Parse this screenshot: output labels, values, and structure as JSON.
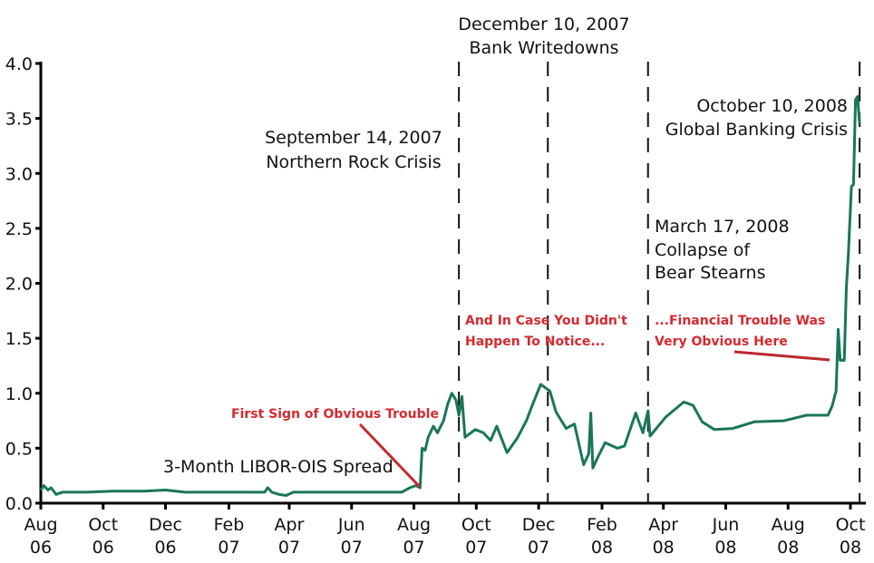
{
  "chart_data": {
    "type": "line",
    "title": "",
    "xlabel": "",
    "ylabel": "",
    "ylim": [
      0,
      4.0
    ],
    "xlim": [
      "2006-08-01",
      "2008-10-15"
    ],
    "grid": false,
    "y_ticks": [
      "0.0",
      "0.5",
      "1.0",
      "1.5",
      "2.0",
      "2.5",
      "3.0",
      "3.5",
      "4.0"
    ],
    "x_ticks": [
      {
        "date": "2006-08-01",
        "month": "Aug",
        "year": "06"
      },
      {
        "date": "2006-10-01",
        "month": "Oct",
        "year": "06"
      },
      {
        "date": "2006-12-01",
        "month": "Dec",
        "year": "06"
      },
      {
        "date": "2007-02-01",
        "month": "Feb",
        "year": "07"
      },
      {
        "date": "2007-04-01",
        "month": "Apr",
        "year": "07"
      },
      {
        "date": "2007-06-01",
        "month": "Jun",
        "year": "07"
      },
      {
        "date": "2007-08-01",
        "month": "Aug",
        "year": "07"
      },
      {
        "date": "2007-10-01",
        "month": "Oct",
        "year": "07"
      },
      {
        "date": "2007-12-01",
        "month": "Dec",
        "year": "07"
      },
      {
        "date": "2008-02-01",
        "month": "Feb",
        "year": "08"
      },
      {
        "date": "2008-04-01",
        "month": "Apr",
        "year": "08"
      },
      {
        "date": "2008-06-01",
        "month": "Jun",
        "year": "08"
      },
      {
        "date": "2008-08-01",
        "month": "Aug",
        "year": "08"
      },
      {
        "date": "2008-10-01",
        "month": "Oct",
        "year": "08"
      }
    ],
    "series": [
      {
        "name": "3-Month LIBOR-OIS Spread",
        "color": "#1a7658",
        "points": [
          [
            "2006-08-01",
            0.12
          ],
          [
            "2006-08-04",
            0.16
          ],
          [
            "2006-08-08",
            0.12
          ],
          [
            "2006-08-11",
            0.14
          ],
          [
            "2006-08-16",
            0.08
          ],
          [
            "2006-08-22",
            0.1
          ],
          [
            "2006-09-15",
            0.1
          ],
          [
            "2006-10-10",
            0.11
          ],
          [
            "2006-11-10",
            0.11
          ],
          [
            "2006-12-01",
            0.12
          ],
          [
            "2006-12-20",
            0.1
          ],
          [
            "2007-01-15",
            0.1
          ],
          [
            "2007-02-15",
            0.1
          ],
          [
            "2007-03-08",
            0.1
          ],
          [
            "2007-03-11",
            0.14
          ],
          [
            "2007-03-15",
            0.1
          ],
          [
            "2007-03-22",
            0.08
          ],
          [
            "2007-03-29",
            0.07
          ],
          [
            "2007-04-05",
            0.1
          ],
          [
            "2007-05-15",
            0.1
          ],
          [
            "2007-06-15",
            0.1
          ],
          [
            "2007-07-20",
            0.1
          ],
          [
            "2007-07-28",
            0.14
          ],
          [
            "2007-08-03",
            0.16
          ],
          [
            "2007-08-07",
            0.14
          ],
          [
            "2007-08-09",
            0.5
          ],
          [
            "2007-08-12",
            0.48
          ],
          [
            "2007-08-15",
            0.6
          ],
          [
            "2007-08-20",
            0.7
          ],
          [
            "2007-08-24",
            0.64
          ],
          [
            "2007-08-30",
            0.75
          ],
          [
            "2007-09-03",
            0.9
          ],
          [
            "2007-09-07",
            1.0
          ],
          [
            "2007-09-11",
            0.94
          ],
          [
            "2007-09-14",
            0.8
          ],
          [
            "2007-09-17",
            0.97
          ],
          [
            "2007-09-20",
            0.6
          ],
          [
            "2007-09-30",
            0.67
          ],
          [
            "2007-10-08",
            0.64
          ],
          [
            "2007-10-15",
            0.57
          ],
          [
            "2007-10-21",
            0.7
          ],
          [
            "2007-10-31",
            0.46
          ],
          [
            "2007-11-10",
            0.59
          ],
          [
            "2007-11-19",
            0.75
          ],
          [
            "2007-11-26",
            0.92
          ],
          [
            "2007-12-03",
            1.08
          ],
          [
            "2007-12-12",
            1.02
          ],
          [
            "2007-12-18",
            0.83
          ],
          [
            "2007-12-28",
            0.68
          ],
          [
            "2008-01-05",
            0.72
          ],
          [
            "2008-01-14",
            0.35
          ],
          [
            "2008-01-19",
            0.45
          ],
          [
            "2008-01-21",
            0.82
          ],
          [
            "2008-01-23",
            0.32
          ],
          [
            "2008-01-28",
            0.42
          ],
          [
            "2008-02-04",
            0.55
          ],
          [
            "2008-02-16",
            0.5
          ],
          [
            "2008-02-23",
            0.52
          ],
          [
            "2008-03-05",
            0.82
          ],
          [
            "2008-03-12",
            0.64
          ],
          [
            "2008-03-17",
            0.84
          ],
          [
            "2008-03-19",
            0.61
          ],
          [
            "2008-04-03",
            0.78
          ],
          [
            "2008-04-21",
            0.92
          ],
          [
            "2008-04-30",
            0.89
          ],
          [
            "2008-05-09",
            0.74
          ],
          [
            "2008-05-21",
            0.67
          ],
          [
            "2008-06-08",
            0.68
          ],
          [
            "2008-06-29",
            0.74
          ],
          [
            "2008-07-28",
            0.75
          ],
          [
            "2008-08-19",
            0.8
          ],
          [
            "2008-09-09",
            0.8
          ],
          [
            "2008-09-13",
            0.88
          ],
          [
            "2008-09-17",
            1.02
          ],
          [
            "2008-09-19",
            1.58
          ],
          [
            "2008-09-21",
            1.3
          ],
          [
            "2008-09-25",
            1.3
          ],
          [
            "2008-09-27",
            1.96
          ],
          [
            "2008-09-29",
            2.26
          ],
          [
            "2008-10-02",
            2.88
          ],
          [
            "2008-10-04",
            2.9
          ],
          [
            "2008-10-06",
            3.67
          ],
          [
            "2008-10-08",
            3.7
          ],
          [
            "2008-10-10",
            3.45
          ]
        ]
      }
    ],
    "event_lines": [
      {
        "date": "2007-09-14",
        "line1": "September 14, 2007",
        "line2": "Northern Rock Crisis"
      },
      {
        "date": "2007-12-10",
        "line1": "December 10, 2007",
        "line2": "Bank Writedowns"
      },
      {
        "date": "2008-03-17",
        "line1": "March 17, 2008",
        "line2": "Collapse of",
        "line3": "Bear Stearns"
      },
      {
        "date": "2008-10-10",
        "line1": "October 10, 2008",
        "line2": "Global Banking Crisis"
      }
    ],
    "series_label": "3-Month LIBOR-OIS Spread",
    "red_annotations": {
      "color": "#d42a2f",
      "first_sign": "First Sign of Obvious Trouble",
      "in_case_1": "And In Case You Didn't",
      "in_case_2": "Happen To Notice...",
      "obvious_1": "...Financial Trouble Was",
      "obvious_2": "Very Obvious Here"
    }
  }
}
